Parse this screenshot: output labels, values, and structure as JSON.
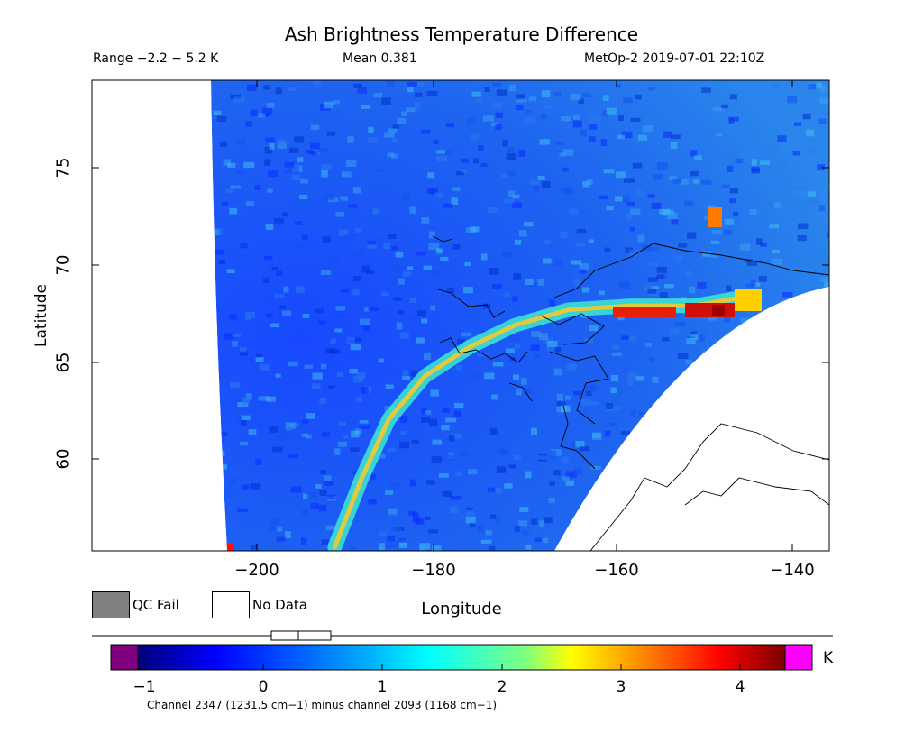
{
  "header": {
    "title": "Ash Brightness Temperature Difference",
    "range_text": "Range −2.2 − 5.2 K",
    "mean_text": "Mean 0.381",
    "satellite_text": "MetOp-2 2019-07-01 22:10Z"
  },
  "axes": {
    "x_label": "Longitude",
    "y_label": "Latitude",
    "x_ticks": [
      "−200",
      "−180",
      "−160",
      "−140"
    ],
    "y_ticks": [
      "75",
      "70",
      "65",
      "60"
    ]
  },
  "legend": {
    "qc_fail_label": "QC Fail",
    "qc_fail_color": "#808080",
    "no_data_label": "No Data",
    "no_data_color": "#ffffff"
  },
  "colorbar": {
    "ticks": [
      "−1",
      "0",
      "1",
      "2",
      "3",
      "4"
    ],
    "unit": "K",
    "under_color": "#800080",
    "over_color": "#ff00ff",
    "caption": "Channel 2347 (1231.5 cm−1) minus channel 2093 (1168 cm−1)"
  },
  "map_data": {
    "x_range": [
      -218,
      -136
    ],
    "y_range": [
      55.3,
      79.3
    ],
    "ash_plume_path": [
      [
        -191,
        55.5
      ],
      [
        -188,
        59
      ],
      [
        -185,
        62
      ],
      [
        -181,
        64.2
      ],
      [
        -176,
        65.7
      ],
      [
        -171,
        66.8
      ],
      [
        -165,
        67.6
      ],
      [
        -158,
        67.8
      ],
      [
        -151,
        67.8
      ],
      [
        -146,
        68.2
      ]
    ]
  }
}
